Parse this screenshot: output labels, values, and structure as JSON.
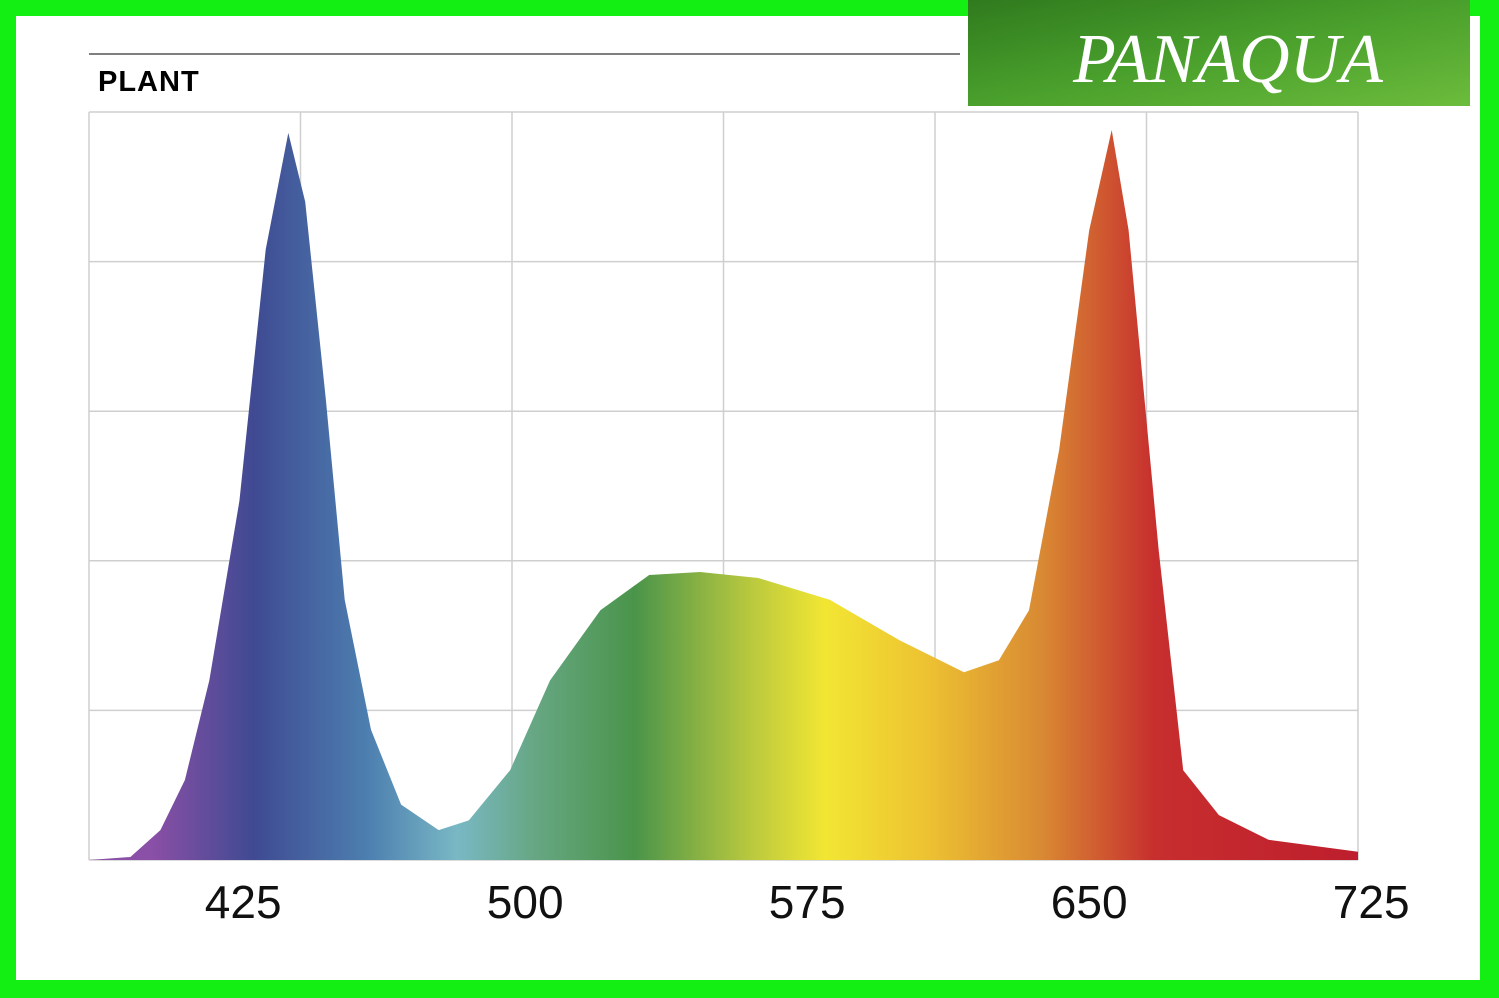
{
  "chart_data": {
    "type": "area",
    "title": "PLANT",
    "x": [
      384,
      395,
      403,
      409.5,
      416,
      424,
      431,
      437,
      441.5,
      447,
      452,
      459,
      467,
      477,
      485,
      496,
      506.6,
      520,
      533,
      546.5,
      562,
      581,
      599.5,
      616.7,
      626,
      634,
      642,
      650,
      656,
      660.5,
      668.5,
      675,
      684.5,
      697.7,
      721.5
    ],
    "y": [
      0,
      0.4,
      4,
      10.7,
      24,
      48,
      81.6,
      97.2,
      88,
      61.5,
      34.8,
      17.4,
      7.4,
      4,
      5.3,
      12,
      24,
      33.4,
      38.1,
      38.5,
      37.7,
      34.8,
      29.4,
      25.1,
      26.7,
      33.4,
      54.8,
      84.2,
      97.6,
      84.2,
      41.4,
      12,
      6,
      2.7,
      1.1
    ],
    "xlim": [
      384,
      721.5
    ],
    "ylim": [
      0,
      100
    ],
    "xticks": [
      425,
      500,
      575,
      650,
      725
    ],
    "grid": true
  },
  "logo": "PANAQUA"
}
